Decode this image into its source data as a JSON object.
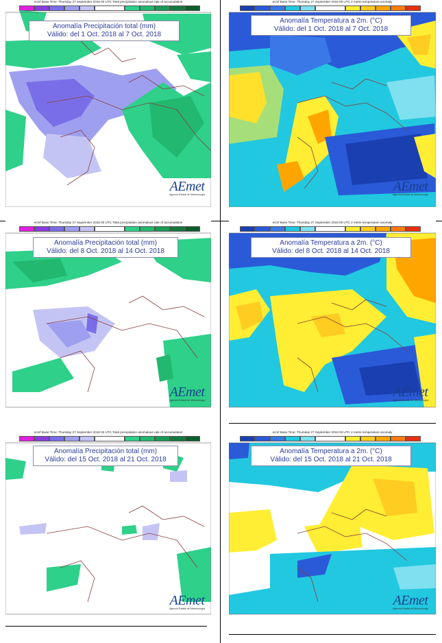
{
  "panels": [
    {
      "id": "p1",
      "kind": "precip",
      "header": "ecmf  Base Time: Thursday 27 September 2018 00 UTC Total precipitation anomalous rate of accumulation",
      "title": "Anomalía Precipitación total (mm)",
      "subtitle": "Válido: del 1 Oct. 2018 al 7 Oct. 2018",
      "logo": "AEmet",
      "logo_sub": "Agencia Estatal de Meteorología"
    },
    {
      "id": "p2",
      "kind": "temp",
      "header": "ecmf  Base Time: Thursday 27 September 2018 00 UTC 2 metre temperature anomaly",
      "title": "Anomalía Temperatura a 2m. (°C)",
      "subtitle": "Válido: del 1 Oct. 2018 al 7 Oct. 2018",
      "logo": "AEmet",
      "logo_sub": "Agencia Estatal de Meteorología"
    },
    {
      "id": "p3",
      "kind": "precip",
      "header": "ecmf  Base Time: Thursday 27 September 2018 00 UTC Total precipitation anomalous rate of accumulation",
      "title": "Anomalía Precipitación total (mm)",
      "subtitle": "Válido: del 8 Oct. 2018 al 14 Oct. 2018",
      "logo": "AEmet",
      "logo_sub": "Agencia Estatal de Meteorología"
    },
    {
      "id": "p4",
      "kind": "temp",
      "header": "ecmf  Base Time: Thursday 27 September 2018 00 UTC 2 metre temperature anomaly",
      "title": "Anomalía Temperatura a 2m. (°C)",
      "subtitle": "Válido: del 8 Oct. 2018 al 14 Oct. 2018",
      "logo": "AEmet",
      "logo_sub": "Agencia Estatal de Meteorología"
    },
    {
      "id": "p5",
      "kind": "precip",
      "header": "ecmf  Base Time: Thursday 27 September 2018 00 UTC Total precipitation anomalous rate of accumulation",
      "title": "Anomalía Precipitación total (mm)",
      "subtitle": "Válido: del 15 Oct. 2018 al 21 Oct. 2018",
      "logo": "AEmet",
      "logo_sub": "Agencia Estatal de Meteorología"
    },
    {
      "id": "p6",
      "kind": "temp",
      "header": "ecmf  Base Time: Thursday 27 September 2018 00 UTC 2 metre temperature anomaly",
      "title": "Anomalía Temperatura a 2m. (°C)",
      "subtitle": "Válido: del 15 Oct. 2018 al 21 Oct. 2018",
      "logo": "AEmet",
      "logo_sub": "Agencia Estatal de Meteorología"
    }
  ],
  "legends": {
    "precip": [
      "#e020e0",
      "#8a3ce0",
      "#7a6ee8",
      "#9f9ff0",
      "#c4c4f4",
      "#ffffff",
      "#2ed08a",
      "#22b870",
      "#1a9a55",
      "#137a3e",
      "#0e5e2c"
    ],
    "temp": [
      "#1a3fb0",
      "#2a5ad8",
      "#3a78e8",
      "#22c8e0",
      "#7fe0f0",
      "#ffffff",
      "#ffee33",
      "#ffcc22",
      "#ffa500",
      "#ff7a10",
      "#e83010"
    ]
  },
  "colors": {
    "border": "#8b3a3a",
    "title_text": "#2a3a9a",
    "logo": "#1a3f8f"
  }
}
